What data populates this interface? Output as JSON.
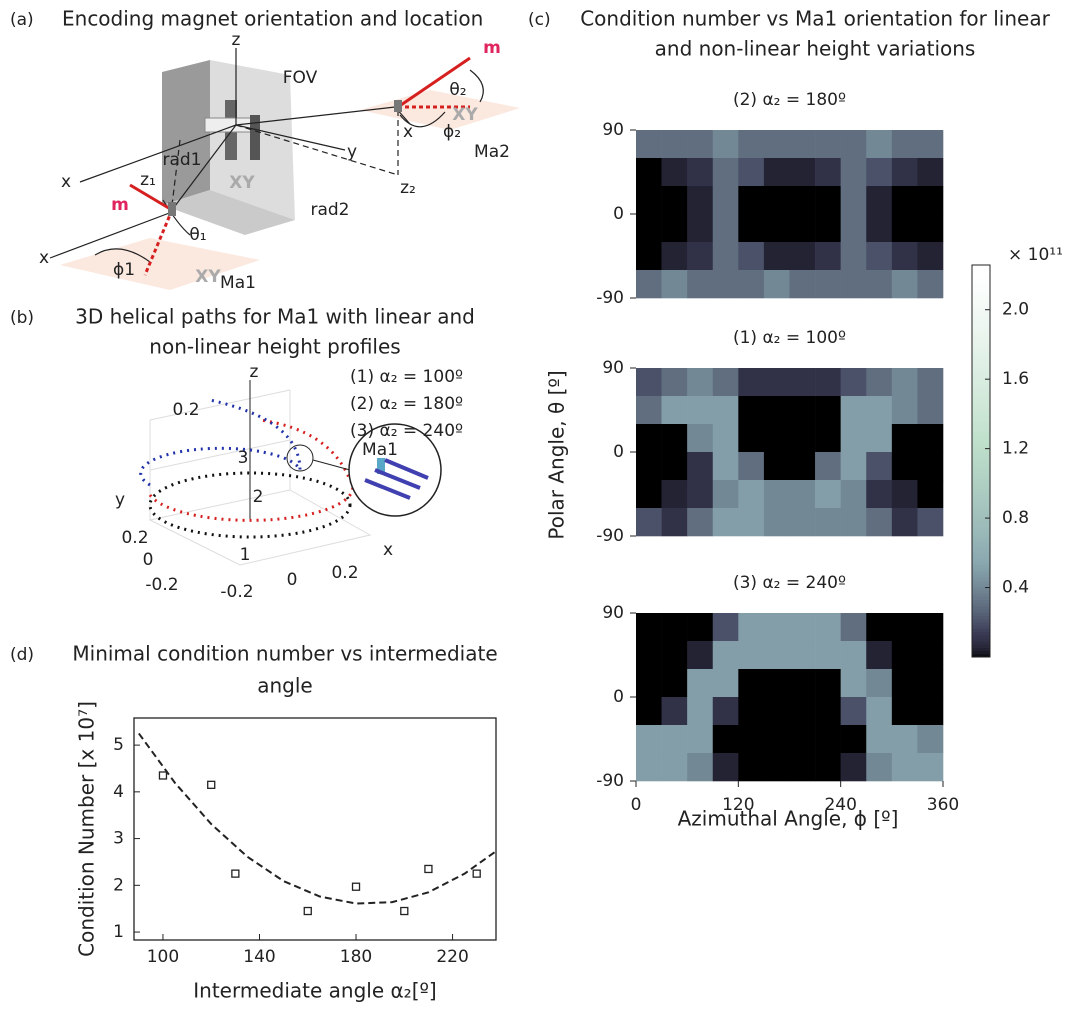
{
  "panel_a": {
    "label": "(a)",
    "title": "Encoding magnet orientation and location",
    "annotations": [
      "z",
      "FOV",
      "m",
      "θ₂",
      "x",
      "ϕ₂",
      "Ma2",
      "XY",
      "y",
      "rad2",
      "z₂",
      "x",
      "rad1",
      "z₁",
      "m",
      "θ₁",
      "ϕ1",
      "x",
      "XY",
      "Ma1",
      "XY"
    ]
  },
  "panel_b": {
    "label": "(b)",
    "title": [
      "3D helical paths for Ma1 with linear and",
      "non-linear height profiles"
    ],
    "legend": [
      "(1) α₂ = 100º",
      "(2) α₂ = 180º",
      "(3) α₂ = 240º"
    ],
    "annotations": [
      "z",
      "0.2",
      "3",
      "Ma1",
      "2",
      "y",
      "0.2",
      "1",
      "x",
      "0",
      "-0.2",
      "0",
      "0.2",
      "-0.2"
    ]
  },
  "panel_c": {
    "label": "(c)",
    "title": [
      "Condition number vs Ma1 orientation for linear",
      "and non-linear height variations"
    ],
    "xlabel": "Azimuthal Angle, ϕ [º]",
    "ylabel": "Polar Angle, θ [º]"
  },
  "colorbar": {
    "label": "× 10¹¹",
    "clim": [
      0,
      2.2
    ],
    "colors": [
      "#000000",
      "#3a3a55",
      "#8aa8b0",
      "#bfe0cb",
      "#ffffff"
    ],
    "ticks": [
      0.4,
      0.8,
      1.2,
      1.6,
      {
        "value": 2,
        "label": "2.0"
      }
    ]
  },
  "chart_data": [
    {
      "type": "heatmap",
      "title": "(2) α₂ = 180º",
      "xlim": [
        0,
        360
      ],
      "ylim": [
        -90,
        90
      ],
      "yticks": [
        90,
        0,
        -90
      ],
      "z": [
        [
          0.3,
          0.3,
          0.3,
          0.4,
          0.3,
          0.3,
          0.3,
          0.3,
          0.3,
          0.4,
          0.3,
          0.3
        ],
        [
          0,
          0.05,
          0.1,
          0.3,
          0.2,
          0.05,
          0.05,
          0.1,
          0.3,
          0.2,
          0.1,
          0.05
        ],
        [
          0,
          0,
          0.05,
          0.3,
          0,
          0,
          0,
          0,
          0.3,
          0.05,
          0,
          0
        ],
        [
          0,
          0,
          0.05,
          0.3,
          0,
          0,
          0,
          0,
          0.3,
          0.05,
          0,
          0
        ],
        [
          0,
          0.05,
          0.1,
          0.3,
          0.2,
          0.05,
          0.05,
          0.1,
          0.3,
          0.2,
          0.1,
          0.05
        ],
        [
          0.3,
          0.4,
          0.3,
          0.3,
          0.3,
          0.4,
          0.3,
          0.3,
          0.3,
          0.3,
          0.4,
          0.3
        ]
      ]
    },
    {
      "type": "heatmap",
      "title": "(1) α₂ = 100º",
      "xlim": [
        0,
        360
      ],
      "ylim": [
        -90,
        90
      ],
      "yticks": [
        90,
        0,
        -90
      ],
      "z": [
        [
          0.2,
          0.3,
          0.4,
          0.3,
          0.1,
          0.1,
          0.1,
          0.1,
          0.2,
          0.3,
          0.4,
          0.3
        ],
        [
          0.3,
          0.5,
          0.5,
          0.5,
          0,
          0,
          0,
          0,
          0.5,
          0.5,
          0.4,
          0.3
        ],
        [
          0,
          0,
          0.4,
          0.5,
          0,
          0,
          0,
          0,
          0.5,
          0.5,
          0,
          0
        ],
        [
          0,
          0,
          0.1,
          0.5,
          0.3,
          0,
          0,
          0.3,
          0.5,
          0.2,
          0,
          0
        ],
        [
          0,
          0.05,
          0.1,
          0.4,
          0.5,
          0.4,
          0.4,
          0.5,
          0.4,
          0.1,
          0.05,
          0
        ],
        [
          0.2,
          0.1,
          0.3,
          0.5,
          0.5,
          0.4,
          0.4,
          0.4,
          0.4,
          0.3,
          0.1,
          0.2
        ]
      ]
    },
    {
      "type": "heatmap",
      "title": "(3) α₂ = 240º",
      "xlim": [
        0,
        360
      ],
      "ylim": [
        -90,
        90
      ],
      "yticks": [
        90,
        0,
        -90
      ],
      "xticks": [
        0,
        120,
        240,
        360
      ],
      "z": [
        [
          0,
          0,
          0,
          0.2,
          0.5,
          0.5,
          0.5,
          0.5,
          0.3,
          0,
          0,
          0
        ],
        [
          0,
          0,
          0.05,
          0.5,
          0.5,
          0.5,
          0.5,
          0.5,
          0.5,
          0.05,
          0,
          0
        ],
        [
          0,
          0,
          0.5,
          0.5,
          0,
          0,
          0,
          0,
          0.5,
          0.4,
          0,
          0
        ],
        [
          0,
          0.1,
          0.5,
          0.1,
          0,
          0,
          0,
          0,
          0.2,
          0.5,
          0,
          0
        ],
        [
          0.5,
          0.5,
          0.5,
          0,
          0,
          0,
          0,
          0,
          0,
          0.5,
          0.5,
          0.4
        ],
        [
          0.5,
          0.5,
          0.4,
          0.05,
          0,
          0,
          0,
          0,
          0.05,
          0.4,
          0.5,
          0.5
        ]
      ]
    },
    {
      "type": "scatter",
      "label": "(d)",
      "title": [
        "Minimal condition number vs intermediate",
        "angle"
      ],
      "xlabel": "Intermediate angle α₂[º]",
      "ylabel": "Condition Number [x 10⁷]",
      "xlim": [
        88,
        238
      ],
      "ylim": [
        0.83,
        5.58
      ],
      "xticks": [
        100,
        140,
        180,
        220
      ],
      "yticks": [
        1,
        2,
        3,
        4,
        5
      ],
      "series": [
        {
          "type": "scatter",
          "color": "#222222",
          "x": [
            100,
            120,
            130,
            160,
            180,
            200,
            210,
            230
          ],
          "values": [
            4.35,
            4.15,
            2.25,
            1.45,
            1.97,
            1.45,
            2.35,
            2.25
          ]
        },
        {
          "type": "line",
          "color": "#222222",
          "x": [
            90,
            105,
            120,
            135,
            150,
            165,
            180,
            195,
            210,
            225,
            238
          ],
          "values": [
            5.25,
            4.19,
            3.31,
            2.61,
            2.09,
            1.76,
            1.61,
            1.64,
            1.85,
            2.25,
            2.73
          ]
        }
      ]
    }
  ]
}
